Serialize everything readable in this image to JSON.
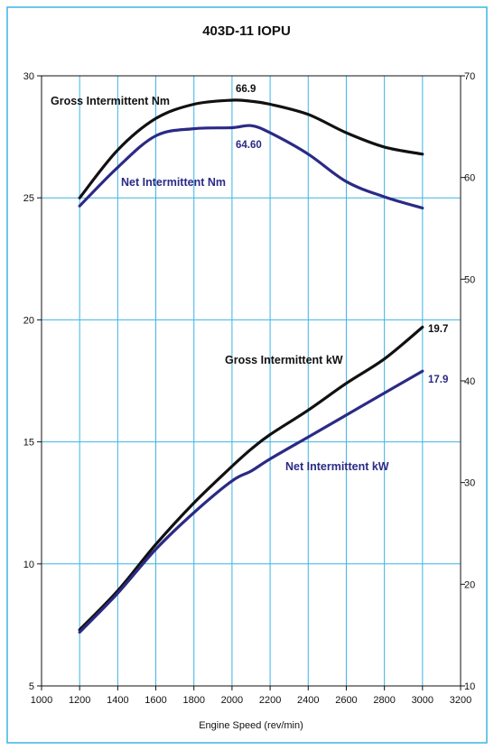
{
  "chart_data": {
    "type": "line",
    "title": "403D-11 IOPU",
    "xlabel": "Engine Speed (rev/min)",
    "ylabel": "",
    "y2label": "",
    "xlim": [
      1000,
      3200
    ],
    "ylim": [
      5,
      30
    ],
    "y2lim": [
      10,
      70
    ],
    "x_ticks": [
      "1000",
      "1200",
      "1400",
      "1600",
      "1800",
      "2000",
      "2200",
      "2400",
      "2600",
      "2800",
      "3000",
      "3200"
    ],
    "y_ticks": [
      "5",
      "10",
      "15",
      "20",
      "25",
      "30"
    ],
    "y2_ticks": [
      "10",
      "20",
      "30",
      "40",
      "50",
      "60",
      "70"
    ],
    "grid": true,
    "colors": {
      "grid": "#3cb4e6",
      "frame": "#3cb4e6",
      "gross": "#111111",
      "net": "#2b2a85"
    },
    "series": [
      {
        "name": "Gross Intermittent Nm",
        "axis": "right",
        "color": "#111111",
        "x": [
          1200,
          1400,
          1600,
          1800,
          2000,
          2100,
          2200,
          2400,
          2600,
          2800,
          3000
        ],
        "y": [
          58.0,
          62.7,
          65.8,
          67.2,
          67.6,
          67.5,
          67.2,
          66.2,
          64.4,
          63.0,
          62.3
        ]
      },
      {
        "name": "Net Intermittent Nm",
        "axis": "right",
        "color": "#2b2a85",
        "x": [
          1200,
          1400,
          1600,
          1800,
          2000,
          2100,
          2200,
          2400,
          2600,
          2800,
          3000
        ],
        "y": [
          57.2,
          61.0,
          64.1,
          64.8,
          64.9,
          65.1,
          64.4,
          62.3,
          59.6,
          58.1,
          57.0
        ]
      },
      {
        "name": "Gross Intermittent kW",
        "axis": "left",
        "color": "#111111",
        "x": [
          1200,
          1400,
          1600,
          1800,
          2000,
          2100,
          2200,
          2400,
          2600,
          2800,
          3000
        ],
        "y": [
          7.3,
          8.9,
          10.8,
          12.5,
          14.0,
          14.7,
          15.3,
          16.3,
          17.4,
          18.4,
          19.7
        ]
      },
      {
        "name": "Net Intermittent kW",
        "axis": "left",
        "color": "#2b2a85",
        "x": [
          1200,
          1400,
          1600,
          1800,
          2000,
          2100,
          2200,
          2400,
          2600,
          2800,
          3000
        ],
        "y": [
          7.2,
          8.8,
          10.6,
          12.1,
          13.4,
          13.8,
          14.3,
          15.2,
          16.1,
          17.0,
          17.9
        ]
      }
    ],
    "annotations": [
      {
        "text": "66.9",
        "color": "#111111"
      },
      {
        "text": "64.60",
        "color": "#2b2a85"
      },
      {
        "text": "19.7",
        "color": "#111111"
      },
      {
        "text": "17.9",
        "color": "#2b2a85"
      }
    ]
  }
}
